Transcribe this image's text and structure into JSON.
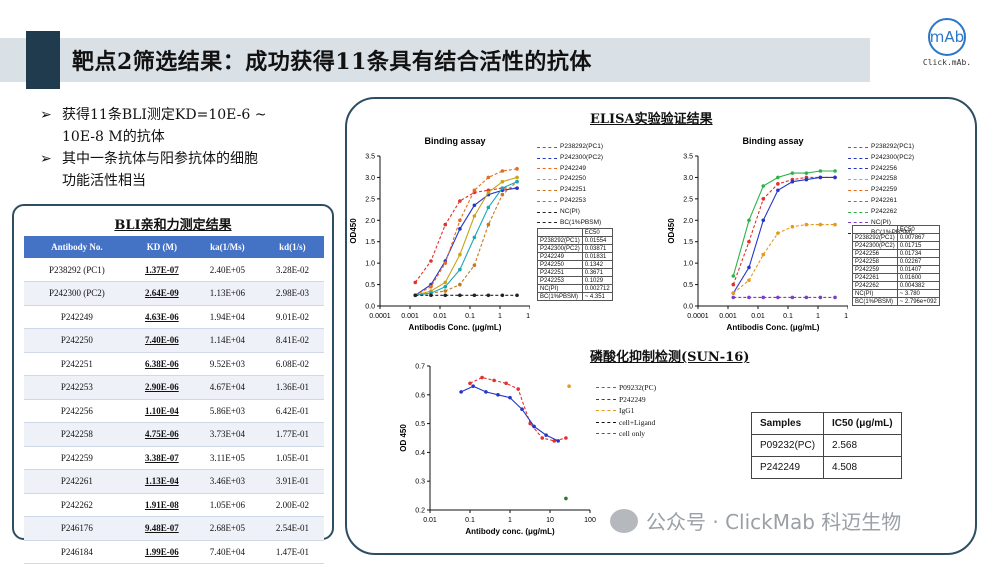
{
  "page": {
    "title": "靶点2筛选结果：成功获得11条具有结合活性的抗体"
  },
  "logo": {
    "text": "Click.mAb.",
    "glyph": "mAb"
  },
  "bullets": [
    {
      "arrow": "➢",
      "text": "获得11条BLI测定KD=10E-6 ~",
      "cont": "10E-8 M的抗体"
    },
    {
      "arrow": "➢",
      "text": "其中一条抗体与阳参抗体的细胞",
      "cont": "功能活性相当"
    }
  ],
  "bli": {
    "title": "BLI亲和力测定结果",
    "headers": [
      "Antibody No.",
      "KD (M)",
      "ka(1/Ms)",
      "kd(1/s)"
    ],
    "rows": [
      [
        "P238292 (PC1)",
        "1.37E-07",
        "2.40E+05",
        "3.28E-02"
      ],
      [
        "P242300 (PC2)",
        "2.64E-09",
        "1.13E+06",
        "2.98E-03"
      ],
      [
        "P242249",
        "4.63E-06",
        "1.94E+04",
        "9.01E-02"
      ],
      [
        "P242250",
        "7.40E-06",
        "1.14E+04",
        "8.41E-02"
      ],
      [
        "P242251",
        "6.38E-06",
        "9.52E+03",
        "6.08E-02"
      ],
      [
        "P242253",
        "2.90E-06",
        "4.67E+04",
        "1.36E-01"
      ],
      [
        "P242256",
        "1.10E-04",
        "5.86E+03",
        "6.42E-01"
      ],
      [
        "P242258",
        "4.75E-06",
        "3.73E+04",
        "1.77E-01"
      ],
      [
        "P242259",
        "3.38E-07",
        "3.11E+05",
        "1.05E-01"
      ],
      [
        "P242261",
        "1.13E-04",
        "3.46E+03",
        "3.91E-01"
      ],
      [
        "P242262",
        "1.91E-08",
        "1.05E+06",
        "2.00E-02"
      ],
      [
        "P246176",
        "9.48E-07",
        "2.68E+05",
        "2.54E-01"
      ],
      [
        "P246184",
        "1.99E-06",
        "7.40E+04",
        "1.47E-01"
      ]
    ]
  },
  "elisa": {
    "header": "ELISA实验验证结果",
    "left": {
      "title": "Binding assay",
      "ylabel": "OD450",
      "xlabel": "Antibodis Conc. (μg/mL)",
      "legend": [
        "P238292(PC1)",
        "P242300(PC2)",
        "P242249",
        "P242250",
        "P242251",
        "P242253",
        "NC(PI)",
        "BC(1%PBSM)"
      ],
      "ec50_header": "EC50",
      "ec50": [
        [
          "P238292(PC1)",
          "0.01554"
        ],
        [
          "P242300(PC2)",
          "0.03871"
        ],
        [
          "P242249",
          "0.01831"
        ],
        [
          "P242250",
          "0.1342"
        ],
        [
          "P242251",
          "0.3671"
        ],
        [
          "P242253",
          "0.1029"
        ],
        [
          "NC(PI)",
          "0.002712"
        ],
        [
          "BC(1%PBSM)",
          "~ 4.351"
        ]
      ]
    },
    "right": {
      "title": "Binding assay",
      "ylabel": "OD450",
      "xlabel": "Antibodis Conc. (μg/mL)",
      "legend": [
        "P238292(PC1)",
        "P242300(PC2)",
        "P242256",
        "P242258",
        "P242259",
        "P242261",
        "P242262",
        "NC(PI)",
        "BC(1%PBSM)"
      ],
      "ec50_header": "EC50",
      "ec50": [
        [
          "P238292(PC1)",
          "0.007867"
        ],
        [
          "P242300(PC2)",
          "0.01715"
        ],
        [
          "P242256",
          "0.01734"
        ],
        [
          "P242258",
          "0.02267"
        ],
        [
          "P242259",
          "0.01407"
        ],
        [
          "P242261",
          "0.01600"
        ],
        [
          "P242262",
          "0.004382"
        ],
        [
          "NC(PI)",
          "~ 3.780"
        ],
        [
          "BC(1%PBSM)",
          "~ 2.796e+092"
        ]
      ]
    }
  },
  "sun": {
    "header": "磷酸化抑制检测(SUN-16)",
    "ylabel": "OD 450",
    "xlabel": "Antibody conc. (μg/mL)",
    "legend": [
      "P09232(PC)",
      "P242249",
      "IgG1",
      "cell+Ligand",
      "cell only"
    ],
    "table_headers": [
      "Samples",
      "IC50 (μg/mL)"
    ],
    "table_rows": [
      [
        "P09232(PC)",
        "2.568"
      ],
      [
        "P242249",
        "4.508"
      ]
    ]
  },
  "watermark": "公众号 · ClickMab 科迈生物",
  "chart_data": [
    {
      "type": "line",
      "title": "Binding assay",
      "xlabel": "Antibodis Conc. (μg/mL)",
      "ylabel": "OD450",
      "xscale": "log",
      "xlim": [
        0.0001,
        10
      ],
      "ylim": [
        0,
        3.5
      ],
      "x": [
        0.0015,
        0.005,
        0.015,
        0.046,
        0.14,
        0.41,
        1.2,
        3.7
      ],
      "series": [
        {
          "name": "P238292(PC1)",
          "color": "#e0312b",
          "values": [
            0.55,
            1.05,
            1.9,
            2.45,
            2.65,
            2.7,
            2.75,
            2.75
          ]
        },
        {
          "name": "P242300(PC2)",
          "color": "#2636c8",
          "values": [
            0.25,
            0.5,
            1.05,
            1.8,
            2.35,
            2.6,
            2.7,
            2.75
          ]
        },
        {
          "name": "P242249",
          "color": "#e56b1f",
          "values": [
            0.25,
            0.45,
            1.0,
            2.0,
            2.7,
            3.0,
            3.15,
            3.2
          ]
        },
        {
          "name": "P242250",
          "color": "#c9a416",
          "values": [
            0.25,
            0.35,
            0.55,
            1.2,
            2.1,
            2.65,
            2.9,
            3.0
          ]
        },
        {
          "name": "P242251",
          "color": "#c8761e",
          "values": [
            0.25,
            0.3,
            0.35,
            0.5,
            0.95,
            1.9,
            2.6,
            2.9
          ]
        },
        {
          "name": "P242253",
          "color": "#19a7b8",
          "values": [
            0.25,
            0.3,
            0.45,
            0.85,
            1.6,
            2.3,
            2.75,
            2.9
          ]
        },
        {
          "name": "NC(PI)",
          "color": "#222222",
          "values": [
            0.25,
            0.25,
            0.25,
            0.25,
            0.25,
            0.25,
            0.25,
            0.25
          ]
        }
      ]
    },
    {
      "type": "line",
      "title": "Binding assay",
      "xlabel": "Antibodis Conc. (μg/mL)",
      "ylabel": "OD450",
      "xscale": "log",
      "xlim": [
        0.0001,
        10
      ],
      "ylim": [
        0,
        3.5
      ],
      "x": [
        0.0015,
        0.005,
        0.015,
        0.046,
        0.14,
        0.41,
        1.2,
        3.7
      ],
      "series": [
        {
          "name": "P238292(PC1)",
          "color": "#e0312b",
          "values": [
            0.5,
            1.5,
            2.5,
            2.85,
            2.95,
            3.0,
            3.0,
            3.0
          ]
        },
        {
          "name": "P242300(PC2)",
          "color": "#2636c8",
          "values": [
            0.3,
            0.9,
            2.0,
            2.7,
            2.9,
            2.95,
            3.0,
            3.0
          ]
        },
        {
          "name": "P242258",
          "color": "#e59a1f",
          "values": [
            0.3,
            0.6,
            1.2,
            1.7,
            1.85,
            1.9,
            1.9,
            1.9
          ]
        },
        {
          "name": "P242262",
          "color": "#2fb24a",
          "values": [
            0.7,
            2.0,
            2.8,
            3.0,
            3.1,
            3.1,
            3.15,
            3.15
          ]
        },
        {
          "name": "NC(PI)",
          "color": "#7b3fc6",
          "values": [
            0.2,
            0.2,
            0.2,
            0.2,
            0.2,
            0.2,
            0.2,
            0.2
          ]
        }
      ]
    },
    {
      "type": "line",
      "title": "",
      "xlabel": "Antibody conc. (μg/mL)",
      "ylabel": "OD 450",
      "xscale": "log",
      "xlim": [
        0.01,
        100
      ],
      "ylim": [
        0.2,
        0.7
      ],
      "series": [
        {
          "name": "P09232(PC)",
          "color": "#e0312b",
          "x": [
            0.1,
            0.2,
            0.4,
            0.8,
            1.6,
            3.2,
            6.4,
            12.8,
            25
          ],
          "values": [
            0.64,
            0.66,
            0.65,
            0.64,
            0.62,
            0.5,
            0.45,
            0.44,
            0.45
          ]
        },
        {
          "name": "P242249",
          "color": "#2636c8",
          "x": [
            0.06,
            0.12,
            0.25,
            0.5,
            1,
            2,
            4,
            8,
            16
          ],
          "values": [
            0.61,
            0.63,
            0.61,
            0.6,
            0.59,
            0.55,
            0.49,
            0.46,
            0.44
          ]
        },
        {
          "name": "IgG1",
          "color": "#e59a1f",
          "x": [
            30
          ],
          "values": [
            0.63
          ]
        },
        {
          "name": "cell only",
          "color": "#2a7a2a",
          "x": [
            25
          ],
          "values": [
            0.24
          ]
        }
      ]
    }
  ]
}
